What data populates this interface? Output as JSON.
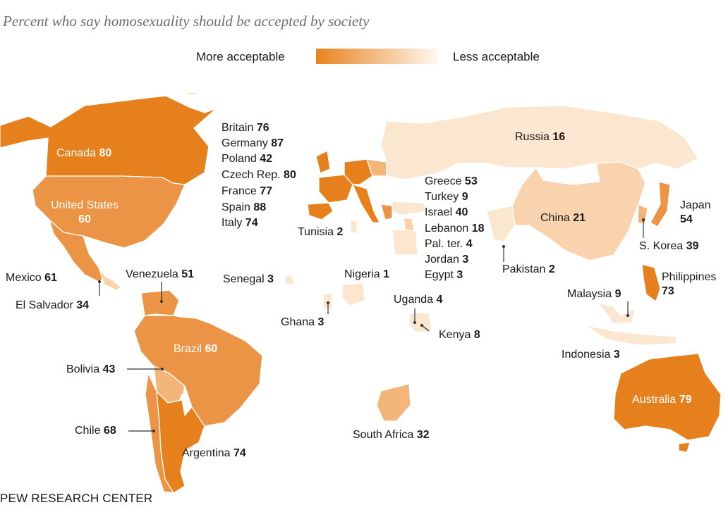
{
  "subtitle": "Percent who say homosexuality should be accepted by society",
  "legend": {
    "more_label": "More acceptable",
    "less_label": "Less acceptable",
    "color_high": "#e8821e",
    "color_low": "#fff7ef"
  },
  "colors": {
    "neutral_land": "#ffffff",
    "border": "#d9d9d9",
    "very_low": "#fbe6cf",
    "low": "#f9d3ad",
    "mid": "#f3b57a",
    "high": "#eb9445",
    "very_high": "#e5801c"
  },
  "source": "PEW RESEARCH CENTER",
  "countries": [
    {
      "name": "Canada",
      "value": "80"
    },
    {
      "name": "United States",
      "value": "60"
    },
    {
      "name": "Mexico",
      "value": "61"
    },
    {
      "name": "El Salvador",
      "value": "34"
    },
    {
      "name": "Venezuela",
      "value": "51"
    },
    {
      "name": "Brazil",
      "value": "60"
    },
    {
      "name": "Bolivia",
      "value": "43"
    },
    {
      "name": "Chile",
      "value": "68"
    },
    {
      "name": "Argentina",
      "value": "74"
    },
    {
      "name": "Britain",
      "value": "76"
    },
    {
      "name": "Germany",
      "value": "87"
    },
    {
      "name": "Poland",
      "value": "42"
    },
    {
      "name": "Czech Rep.",
      "value": "80"
    },
    {
      "name": "France",
      "value": "77"
    },
    {
      "name": "Spain",
      "value": "88"
    },
    {
      "name": "Italy",
      "value": "74"
    },
    {
      "name": "Tunisia",
      "value": "2"
    },
    {
      "name": "Senegal",
      "value": "3"
    },
    {
      "name": "Nigeria",
      "value": "1"
    },
    {
      "name": "Ghana",
      "value": "3"
    },
    {
      "name": "Uganda",
      "value": "4"
    },
    {
      "name": "Kenya",
      "value": "8"
    },
    {
      "name": "South Africa",
      "value": "32"
    },
    {
      "name": "Greece",
      "value": "53"
    },
    {
      "name": "Turkey",
      "value": "9"
    },
    {
      "name": "Israel",
      "value": "40"
    },
    {
      "name": "Lebanon",
      "value": "18"
    },
    {
      "name": "Pal. ter.",
      "value": "4"
    },
    {
      "name": "Jordan",
      "value": "3"
    },
    {
      "name": "Egypt",
      "value": "3"
    },
    {
      "name": "Pakistan",
      "value": "2"
    },
    {
      "name": "Russia",
      "value": "16"
    },
    {
      "name": "China",
      "value": "21"
    },
    {
      "name": "Japan",
      "value": "54"
    },
    {
      "name": "S. Korea",
      "value": "39"
    },
    {
      "name": "Philippines",
      "value": "73"
    },
    {
      "name": "Malaysia",
      "value": "9"
    },
    {
      "name": "Indonesia",
      "value": "3"
    },
    {
      "name": "Australia",
      "value": "79"
    }
  ]
}
